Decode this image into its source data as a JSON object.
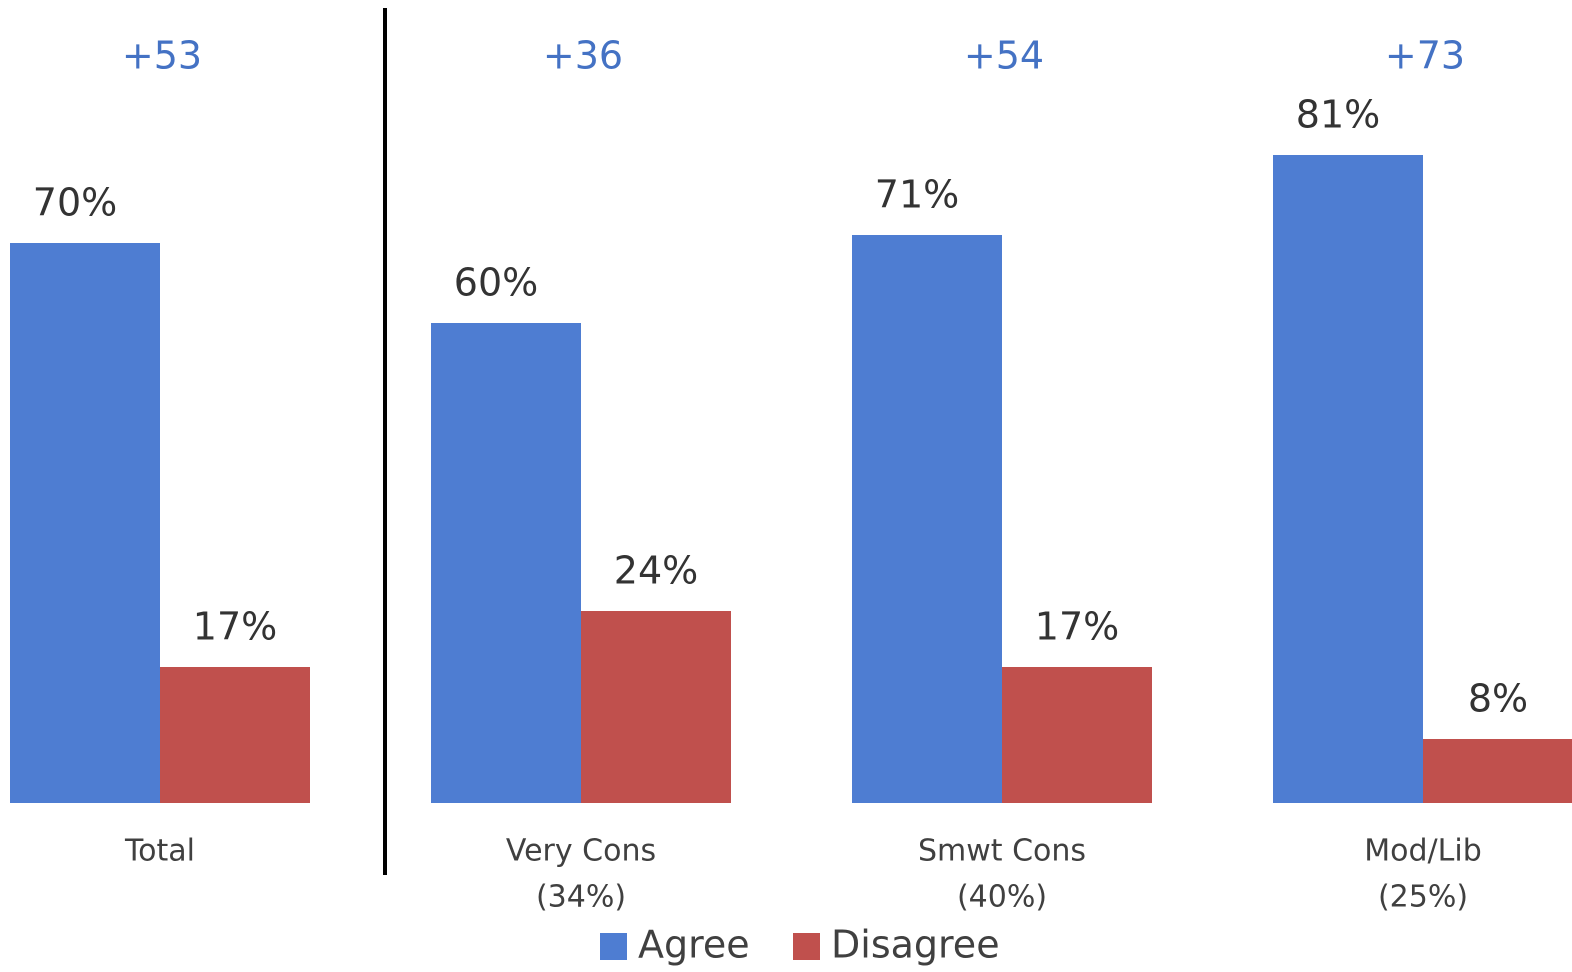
{
  "chart_data": {
    "type": "bar",
    "categories": [
      "Total",
      "Very Cons",
      "Smwt Cons",
      "Mod/Lib"
    ],
    "category_sublabels": [
      null,
      "(34%)",
      "(40%)",
      "(25%)"
    ],
    "annotations": [
      "+53",
      "+36",
      "+54",
      "+73"
    ],
    "series": [
      {
        "name": "Agree",
        "color": "#4e7dd2",
        "values": [
          70,
          60,
          71,
          81
        ],
        "value_labels": [
          "70%",
          "60%",
          "71%",
          "81%"
        ]
      },
      {
        "name": "Disagree",
        "color": "#c0504d",
        "values": [
          17,
          24,
          17,
          8
        ],
        "value_labels": [
          "17%",
          "24%",
          "17%",
          "8%"
        ]
      }
    ],
    "ylim": [
      0,
      100
    ],
    "legend": "bottom"
  }
}
